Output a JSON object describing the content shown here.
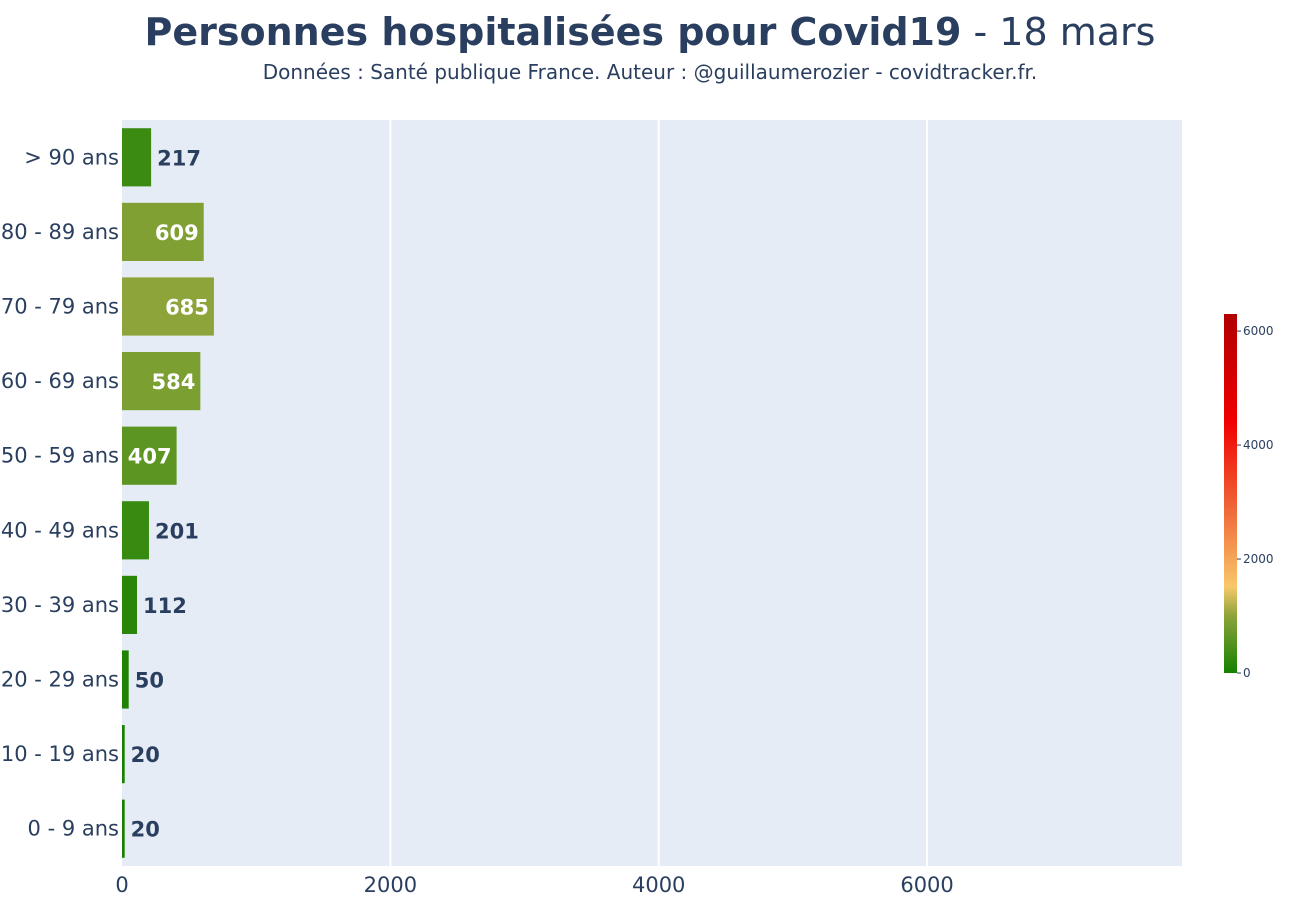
{
  "header": {
    "title_bold": "Personnes hospitalisées pour Covid19",
    "title_rest": " - 18 mars",
    "subtitle": "Données : Santé publique France. Auteur : @guillaumerozier - covidtracker.fr."
  },
  "chart_data": {
    "type": "bar",
    "orientation": "horizontal",
    "categories": [
      "0 - 9 ans",
      "10 - 19 ans",
      "20 - 29 ans",
      "30 - 39 ans",
      "40 - 49 ans",
      "50 - 59 ans",
      "60 - 69 ans",
      "70 - 79 ans",
      "80 - 89 ans",
      "> 90 ans"
    ],
    "values": [
      20,
      20,
      50,
      112,
      201,
      407,
      584,
      685,
      609,
      217
    ],
    "data_labels": [
      "20",
      "20",
      "50",
      "112",
      "201",
      "407",
      "584",
      "685",
      "609",
      "217"
    ],
    "xlim": [
      0,
      7900
    ],
    "x_ticks": [
      "0",
      "2000",
      "4000",
      "6000"
    ],
    "x_tick_values": [
      0,
      2000,
      4000,
      6000
    ],
    "grid": true,
    "colors": {
      "plot_bg": "#e5ecf6",
      "grid": "#ffffff",
      "scale_low": "#158000",
      "scale_mid": "#8da43a",
      "scale_high": "#c00000",
      "label_dark": "#2a3f5f",
      "label_light": "#ffffff"
    },
    "colorbar": {
      "range": [
        0,
        6300
      ],
      "ticks": [
        "0",
        "2000",
        "4000",
        "6000"
      ],
      "tick_values": [
        0,
        2000,
        4000,
        6000
      ]
    }
  }
}
